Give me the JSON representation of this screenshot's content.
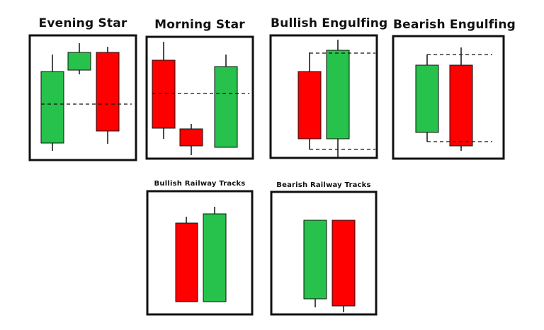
{
  "titles": {
    "evening_star": "Evening Star",
    "morning_star": "Morning Star",
    "bullish_engulfing": "Bullish Engulfing",
    "bearish_engulfing": "Bearish Engulfing",
    "bullish_railway": "Bullish Railway Tracks",
    "bearish_railway": "Bearish Railway Tracks"
  },
  "colors": {
    "bullish": "#26c24b",
    "bearish": "#ff0000",
    "outline": "#111111"
  }
}
